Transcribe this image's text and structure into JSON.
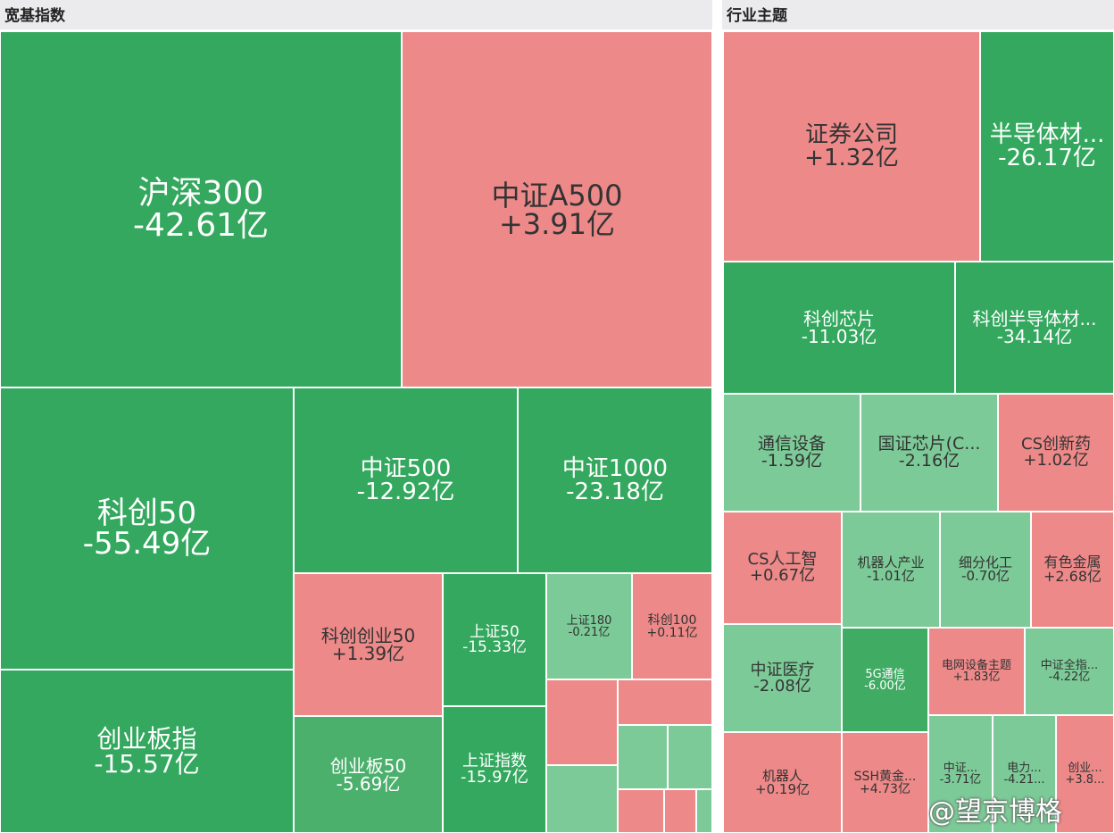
{
  "panels": [
    {
      "title": "宽基指数",
      "tiles": [
        {
          "name": "沪深300",
          "value": "-42.61亿",
          "color": "#33a85e"
        },
        {
          "name": "中证A500",
          "value": "+3.91亿",
          "color": "#ed8989"
        },
        {
          "name": "科创50",
          "value": "-55.49亿",
          "color": "#33a85e"
        },
        {
          "name": "创业板指",
          "value": "-15.57亿",
          "color": "#33a85e"
        },
        {
          "name": "中证500",
          "value": "-12.92亿",
          "color": "#33a85e"
        },
        {
          "name": "中证1000",
          "value": "-23.18亿",
          "color": "#33a85e"
        },
        {
          "name": "科创创业50",
          "value": "+1.39亿",
          "color": "#ed8989"
        },
        {
          "name": "创业板50",
          "value": "-5.69亿",
          "color": "#4cb06d"
        },
        {
          "name": "上证50",
          "value": "-15.33亿",
          "color": "#33a85e"
        },
        {
          "name": "上证指数",
          "value": "-15.97亿",
          "color": "#33a85e"
        },
        {
          "name": "上证180",
          "value": "-0.21亿",
          "color": "#7cca97"
        },
        {
          "name": "科创100",
          "value": "+0.11亿",
          "color": "#ed8989"
        }
      ]
    },
    {
      "title": "行业主题",
      "tiles": [
        {
          "name": "证券公司",
          "value": "+1.32亿",
          "color": "#ed8989"
        },
        {
          "name": "半导体材...",
          "value": "-26.17亿",
          "color": "#33a85e"
        },
        {
          "name": "科创芯片",
          "value": "-11.03亿",
          "color": "#33a85e"
        },
        {
          "name": "科创半导体材...",
          "value": "-34.14亿",
          "color": "#33a85e"
        },
        {
          "name": "通信设备",
          "value": "-1.59亿",
          "color": "#7cca97"
        },
        {
          "name": "国证芯片(C...",
          "value": "-2.16亿",
          "color": "#7cca97"
        },
        {
          "name": "CS创新药",
          "value": "+1.02亿",
          "color": "#ed8989"
        },
        {
          "name": "CS人工智",
          "value": "+0.67亿",
          "color": "#ed8989"
        },
        {
          "name": "机器人产业",
          "value": "-1.01亿",
          "color": "#7cca97"
        },
        {
          "name": "细分化工",
          "value": "-0.70亿",
          "color": "#7cca97"
        },
        {
          "name": "有色金属",
          "value": "+2.68亿",
          "color": "#ed8989"
        },
        {
          "name": "中证医疗",
          "value": "-2.08亿",
          "color": "#7cca97"
        },
        {
          "name": "5G通信",
          "value": "-6.00亿",
          "color": "#40ab63"
        },
        {
          "name": "电网设备主题",
          "value": "+1.83亿",
          "color": "#ed8989"
        },
        {
          "name": "中证全指...",
          "value": "-4.22亿",
          "color": "#7cca97"
        },
        {
          "name": "机器人",
          "value": "+0.19亿",
          "color": "#ed8989"
        },
        {
          "name": "SSH黄金...",
          "value": "+4.73亿",
          "color": "#ed8989"
        },
        {
          "name": "中证...",
          "value": "-3.71亿",
          "color": "#7cca97"
        },
        {
          "name": "电力...",
          "value": "-4.21...",
          "color": "#7cca97"
        },
        {
          "name": "创业...",
          "value": "+3.8...",
          "color": "#ed8989"
        }
      ]
    }
  ],
  "watermark": "@望京博格"
}
